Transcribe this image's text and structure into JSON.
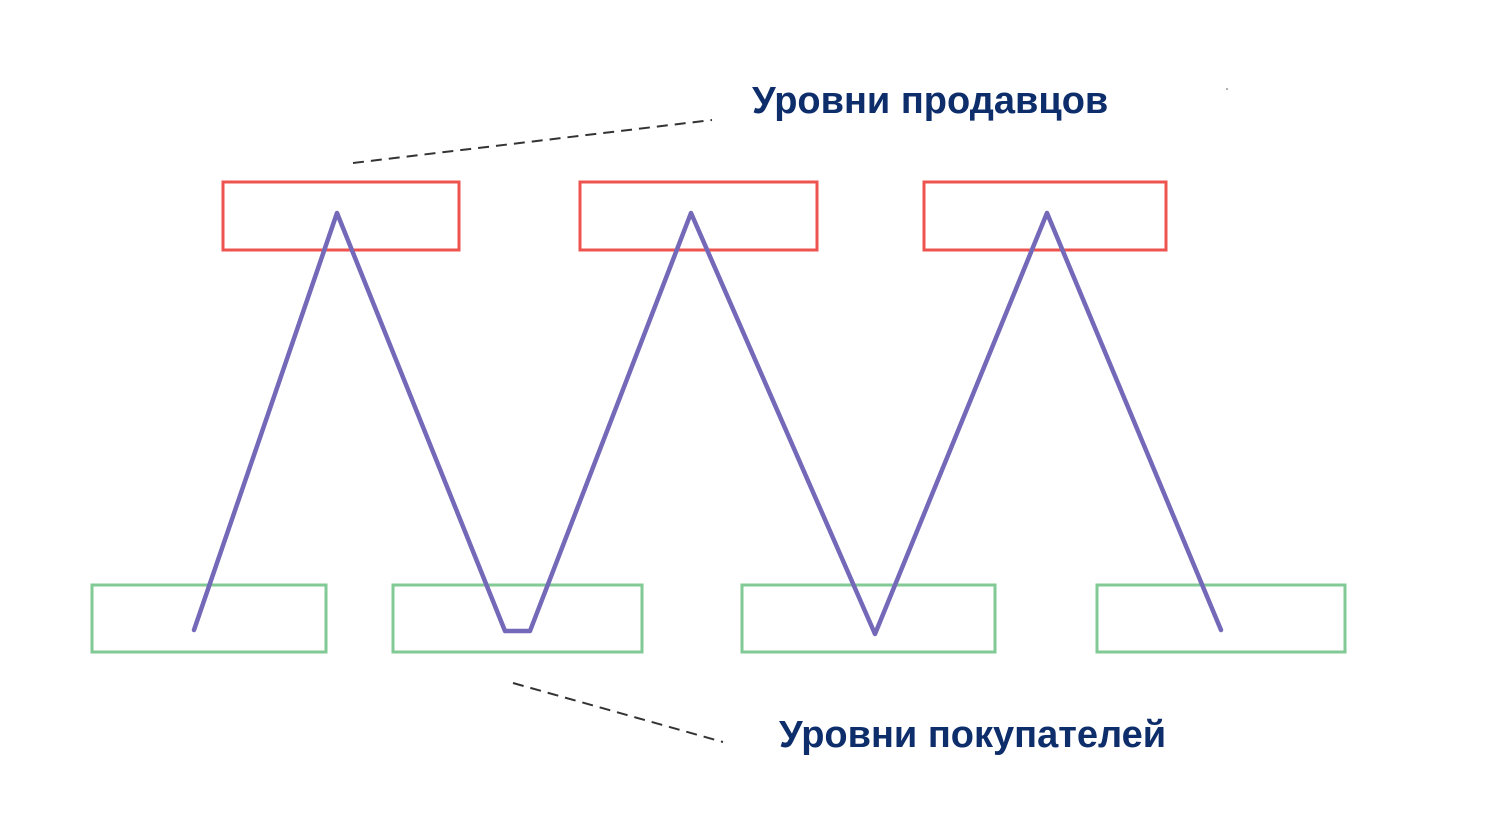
{
  "labels": {
    "sellers": "Уровни продавцов",
    "buyers": "Уровни покупателей"
  },
  "colors": {
    "seller_box": "#ef5350",
    "buyer_box": "#81c995",
    "price_line": "#7468b8",
    "label_text": "#0d2d6b",
    "leader_line": "#333333"
  }
}
